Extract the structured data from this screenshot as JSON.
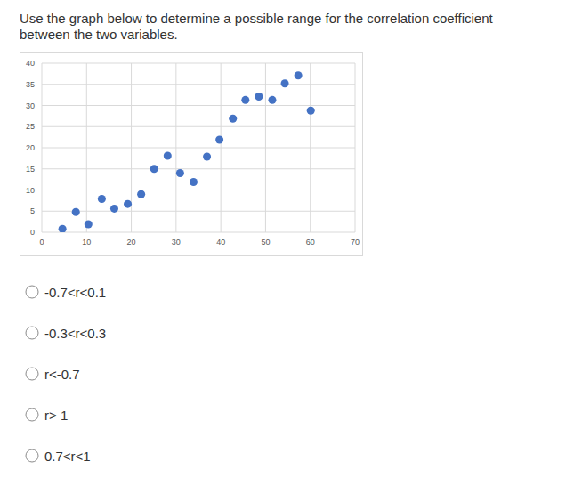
{
  "question": "Use the graph below to determine a possible range for the correlation coefficient between the two variables.",
  "chart_data": {
    "type": "scatter",
    "x": [
      4.6,
      7.6,
      10.4,
      13.4,
      16.2,
      19.2,
      22.2,
      25.1,
      28.1,
      30.9,
      33.9,
      36.9,
      39.7,
      42.7,
      45.5,
      48.5,
      51.5,
      54.3,
      57.3,
      60.1
    ],
    "values": [
      0.8,
      4.8,
      1.9,
      7.9,
      5.6,
      6.7,
      9.0,
      15.0,
      18.1,
      14.0,
      11.9,
      17.9,
      21.9,
      26.9,
      31.3,
      32.1,
      31.3,
      35.2,
      37.1,
      28.8
    ],
    "color": "#4472c4",
    "marker": "circle",
    "xlim": [
      0,
      70
    ],
    "xticks": [
      0,
      10,
      20,
      30,
      40,
      50,
      60,
      70
    ],
    "ylim": [
      0,
      40
    ],
    "yticks": [
      0,
      5,
      10,
      15,
      20,
      25,
      30,
      35,
      40
    ],
    "grid": true
  },
  "options": [
    "-0.7<r<0.1",
    "-0.3<r<0.3",
    "r<-0.7",
    "r> 1",
    "0.7<r<1"
  ]
}
